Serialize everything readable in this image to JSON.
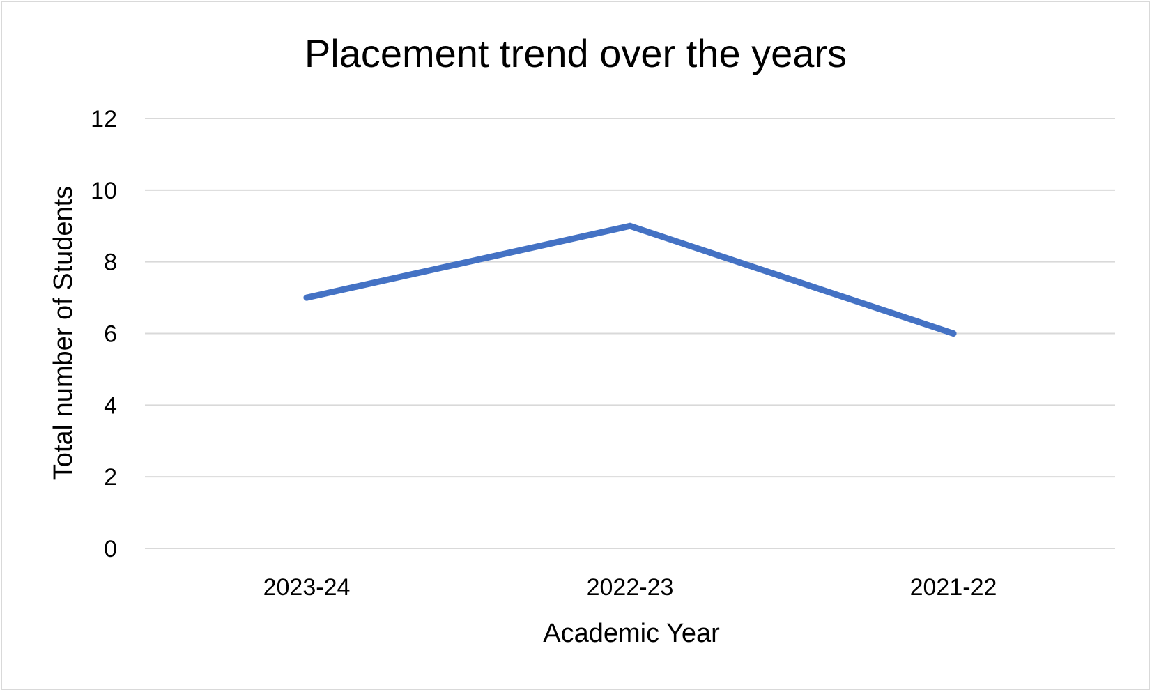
{
  "chart_data": {
    "type": "line",
    "title": "Placement trend over the years",
    "xlabel": "Academic Year",
    "ylabel": "Total number of Students",
    "categories": [
      "2023-24",
      "2022-23",
      "2021-22"
    ],
    "series": [
      {
        "values": [
          7,
          9,
          6
        ],
        "color": "#4472c4"
      }
    ],
    "ylim": [
      0,
      12
    ],
    "yticks": [
      "0",
      "2",
      "4",
      "6",
      "8",
      "10",
      "12"
    ],
    "grid": true,
    "legend": "none"
  }
}
